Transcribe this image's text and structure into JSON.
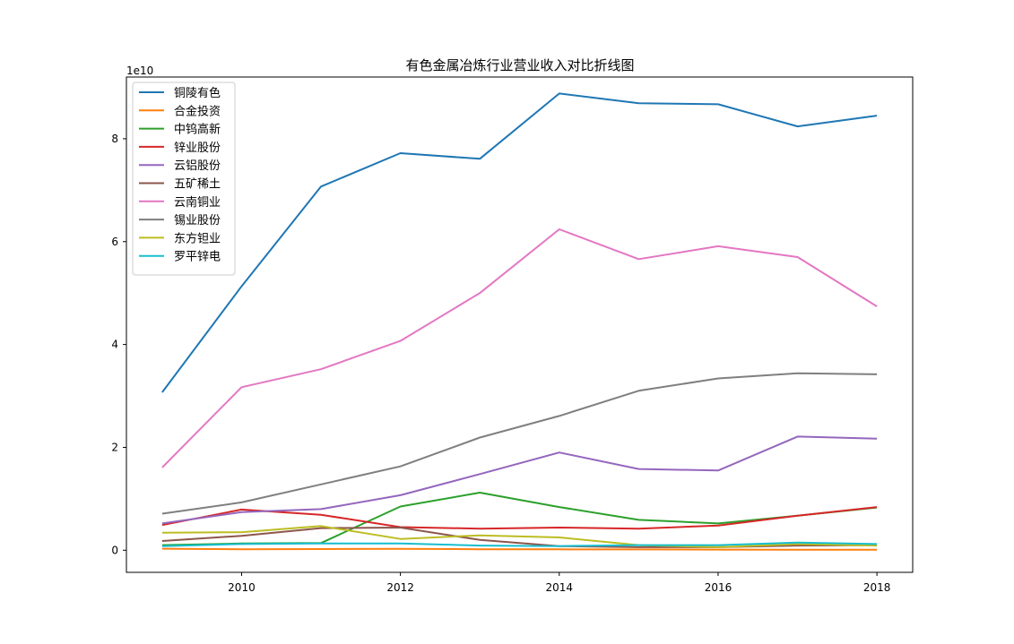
{
  "chart_data": {
    "type": "line",
    "title": "有色金属冶炼行业营业收入对比折线图",
    "xlabel": "",
    "ylabel": "",
    "y_offset_label": "1e10",
    "x": [
      2009,
      2010,
      2011,
      2012,
      2013,
      2014,
      2015,
      2016,
      2017,
      2018
    ],
    "xticks": [
      "2010",
      "2012",
      "2014",
      "2016",
      "2018"
    ],
    "yticks": [
      "0",
      "2",
      "4",
      "6",
      "8"
    ],
    "xlim": [
      2008.55,
      2018.45
    ],
    "ylim": [
      -4300000000.0,
      92000000000.0
    ],
    "grid": false,
    "legend_position": "upper-left",
    "series": [
      {
        "name": "铜陵有色",
        "color": "#1f77b4",
        "values": [
          30700000000.0,
          51300000000.0,
          70700000000.0,
          77200000000.0,
          76100000000.0,
          88800000000.0,
          86900000000.0,
          86700000000.0,
          82400000000.0,
          84500000000.0
        ]
      },
      {
        "name": "合金投资",
        "color": "#ff7f0e",
        "values": [
          300000000.0,
          200000000.0,
          230000000.0,
          280000000.0,
          200000000.0,
          180000000.0,
          150000000.0,
          120000000.0,
          100000000.0,
          110000000.0
        ]
      },
      {
        "name": "中钨高新",
        "color": "#2ca02c",
        "values": [
          1000000000.0,
          1300000000.0,
          1400000000.0,
          8500000000.0,
          11200000000.0,
          8400000000.0,
          5900000000.0,
          5200000000.0,
          6700000000.0,
          8300000000.0
        ]
      },
      {
        "name": "锌业股份",
        "color": "#d62728",
        "values": [
          4900000000.0,
          7900000000.0,
          6900000000.0,
          4500000000.0,
          4200000000.0,
          4400000000.0,
          4200000000.0,
          4800000000.0,
          6700000000.0,
          8400000000.0
        ]
      },
      {
        "name": "云铝股份",
        "color": "#9467bd",
        "values": [
          5200000000.0,
          7400000000.0,
          8000000000.0,
          10700000000.0,
          14800000000.0,
          19000000000.0,
          15800000000.0,
          15500000000.0,
          22100000000.0,
          21700000000.0
        ]
      },
      {
        "name": "五矿稀土",
        "color": "#8c564b",
        "values": [
          1800000000.0,
          2800000000.0,
          4300000000.0,
          4400000000.0,
          2000000000.0,
          800000000.0,
          600000000.0,
          600000000.0,
          900000000.0,
          1000000000.0
        ]
      },
      {
        "name": "云南铜业",
        "color": "#e377c2",
        "values": [
          16100000000.0,
          31700000000.0,
          35200000000.0,
          40700000000.0,
          50000000000.0,
          62400000000.0,
          56600000000.0,
          59100000000.0,
          57000000000.0,
          47400000000.0
        ]
      },
      {
        "name": "锡业股份",
        "color": "#7f7f7f",
        "values": [
          7100000000.0,
          9300000000.0,
          12800000000.0,
          16300000000.0,
          21900000000.0,
          26100000000.0,
          31000000000.0,
          33400000000.0,
          34400000000.0,
          34200000000.0
        ]
      },
      {
        "name": "东方钽业",
        "color": "#bcbd22",
        "values": [
          3400000000.0,
          3500000000.0,
          4700000000.0,
          2200000000.0,
          2900000000.0,
          2500000000.0,
          1000000000.0,
          600000000.0,
          1200000000.0,
          900000000.0
        ]
      },
      {
        "name": "罗平锌电",
        "color": "#17becf",
        "values": [
          800000000.0,
          1200000000.0,
          1300000000.0,
          1300000000.0,
          900000000.0,
          800000000.0,
          1000000000.0,
          1000000000.0,
          1500000000.0,
          1200000000.0
        ]
      }
    ]
  }
}
